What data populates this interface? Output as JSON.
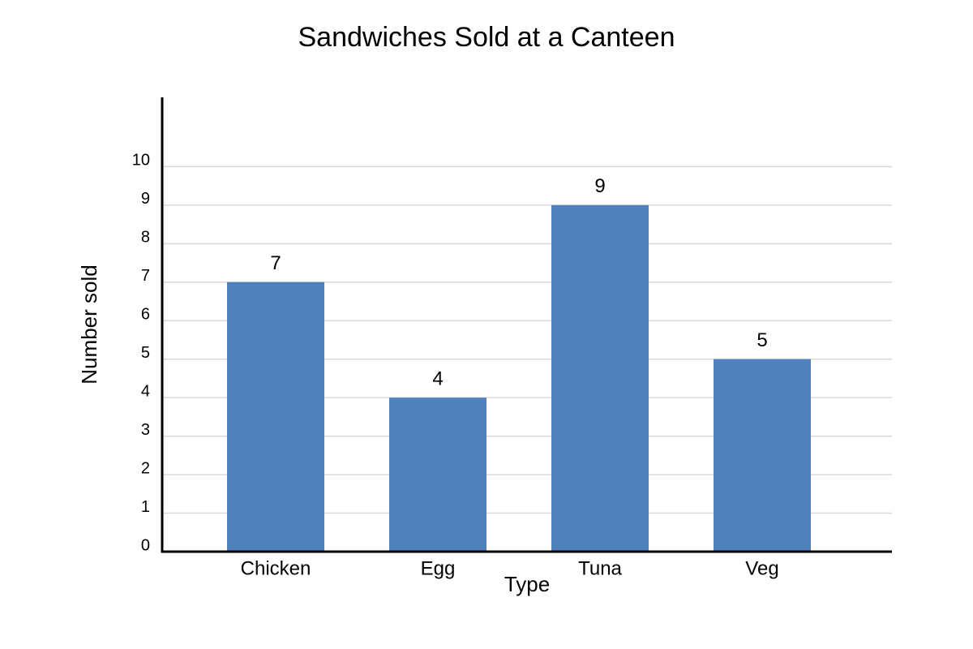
{
  "chart_data": {
    "type": "bar",
    "title": "Sandwiches Sold at a Canteen",
    "x_label": "Type",
    "y_label": "Number sold",
    "categories": [
      "Chicken",
      "Egg",
      "Tuna",
      "Veg"
    ],
    "values": [
      7,
      4,
      9,
      5
    ],
    "color": "#4f81bd",
    "ylim": [
      0,
      11.8
    ],
    "yticks": [
      0,
      1,
      2,
      3,
      4,
      5,
      6,
      7,
      8,
      9,
      10
    ],
    "grid": true,
    "data_labels": true
  }
}
